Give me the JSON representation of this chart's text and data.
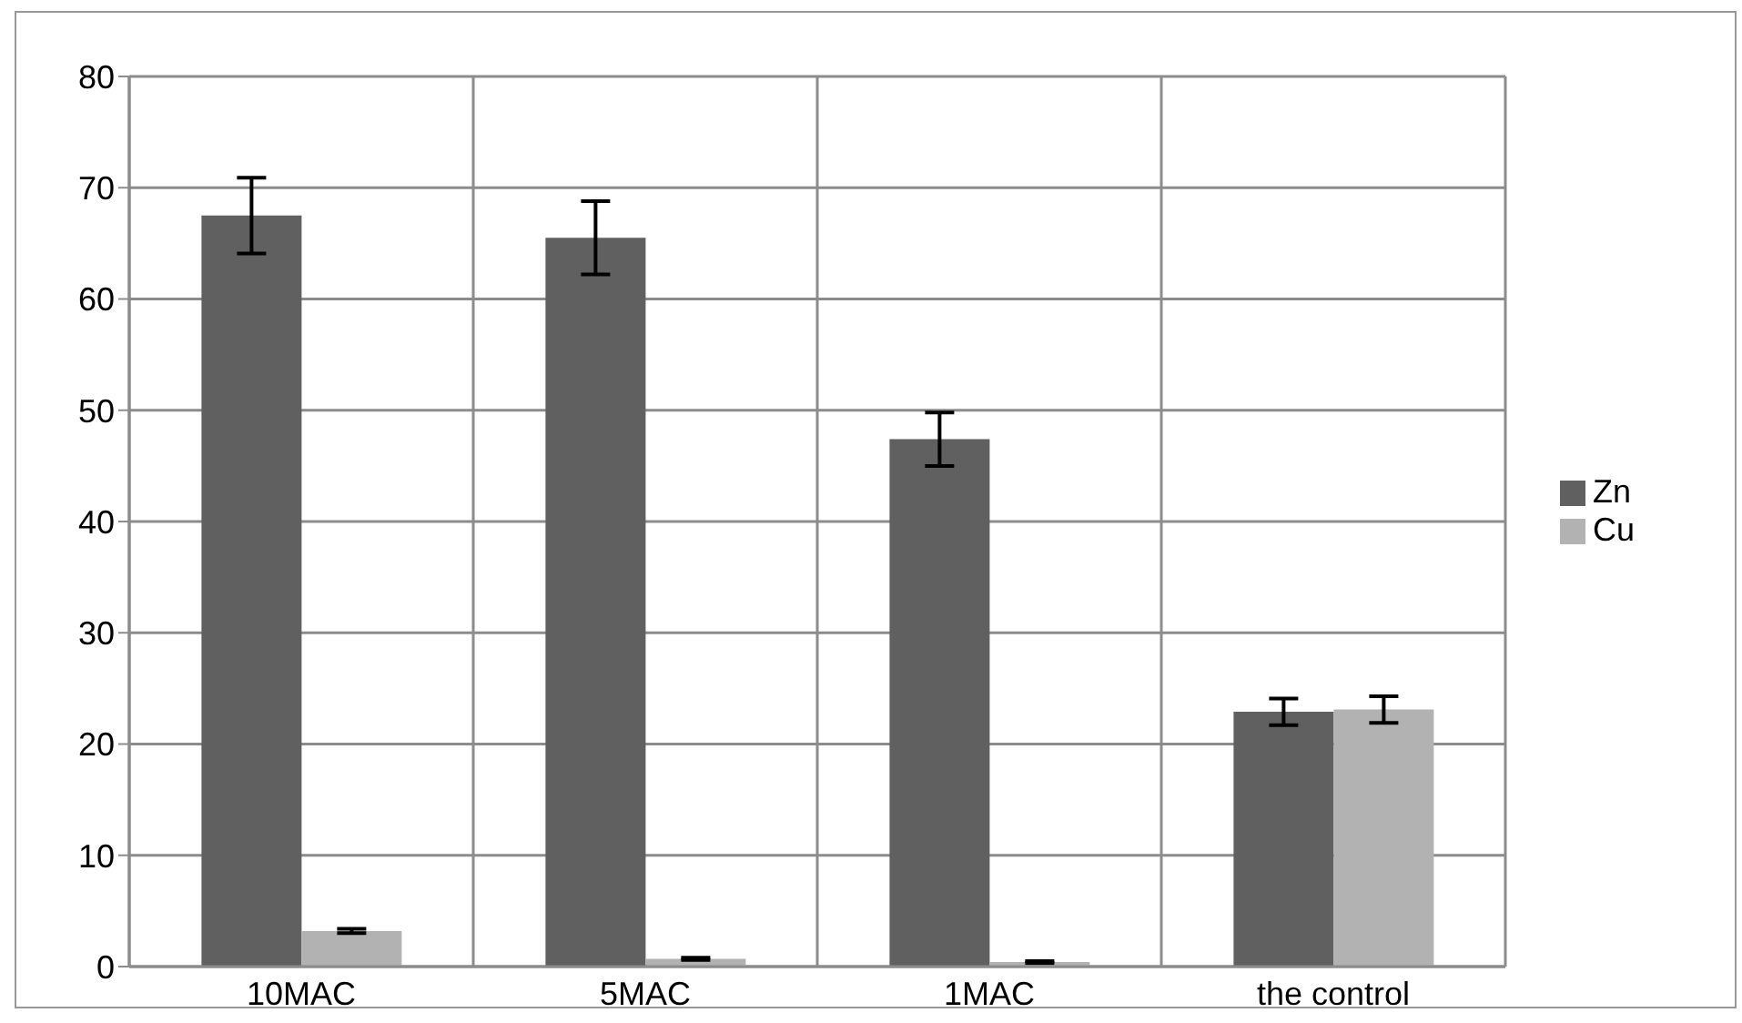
{
  "chart_data": {
    "type": "bar",
    "categories": [
      "10MAC",
      "5MAC",
      "1MAC",
      "the control"
    ],
    "series": [
      {
        "name": "Zn",
        "color": "#606060",
        "values": [
          67.5,
          65.5,
          47.4,
          22.9
        ],
        "errors": [
          3.4,
          3.3,
          2.4,
          1.2
        ]
      },
      {
        "name": "Cu",
        "color": "#b2b2b2",
        "values": [
          3.2,
          0.7,
          0.4,
          23.1
        ],
        "errors": [
          0.2,
          0.1,
          0.1,
          1.2
        ]
      }
    ],
    "ylim": [
      0,
      80
    ],
    "yticks": [
      0,
      10,
      20,
      30,
      40,
      50,
      60,
      70,
      80
    ],
    "grid": true,
    "legend": "right"
  }
}
